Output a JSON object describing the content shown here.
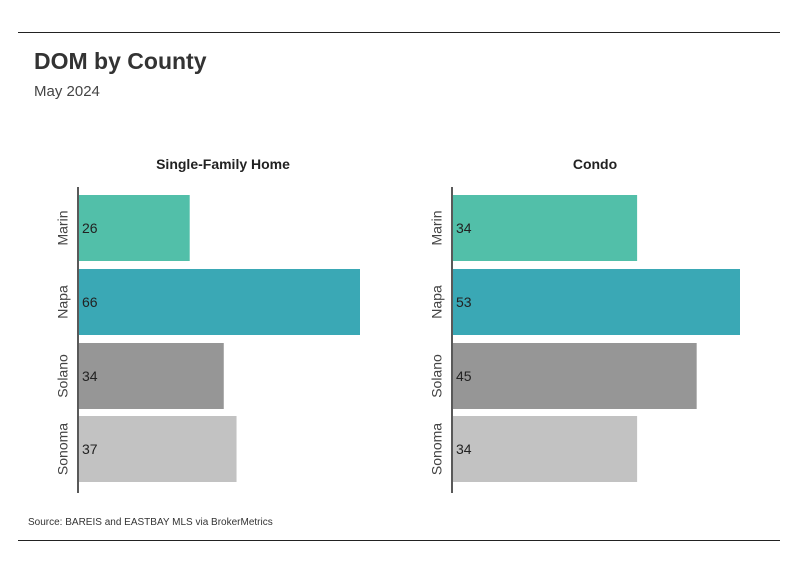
{
  "header": {
    "title": "DOM by County",
    "subtitle": "May 2024"
  },
  "footer": {
    "source": "Source:  BAREIS and EASTBAY MLS via BrokerMetrics"
  },
  "chart_data": [
    {
      "type": "bar",
      "orientation": "horizontal",
      "title": "Single-Family Home",
      "categories": [
        "Marin",
        "Napa",
        "Solano",
        "Sonoma"
      ],
      "values": [
        26,
        66,
        34,
        37
      ],
      "colors": [
        "#52bfa9",
        "#3aa8b5",
        "#969696",
        "#c2c2c2"
      ],
      "xlim": [
        0,
        66
      ],
      "grid": false,
      "legend": "none"
    },
    {
      "type": "bar",
      "orientation": "horizontal",
      "title": "Condo",
      "categories": [
        "Marin",
        "Napa",
        "Solano",
        "Sonoma"
      ],
      "values": [
        34,
        53,
        45,
        34
      ],
      "colors": [
        "#52bfa9",
        "#3aa8b5",
        "#969696",
        "#c2c2c2"
      ],
      "xlim": [
        0,
        53
      ],
      "grid": false,
      "legend": "none"
    }
  ]
}
